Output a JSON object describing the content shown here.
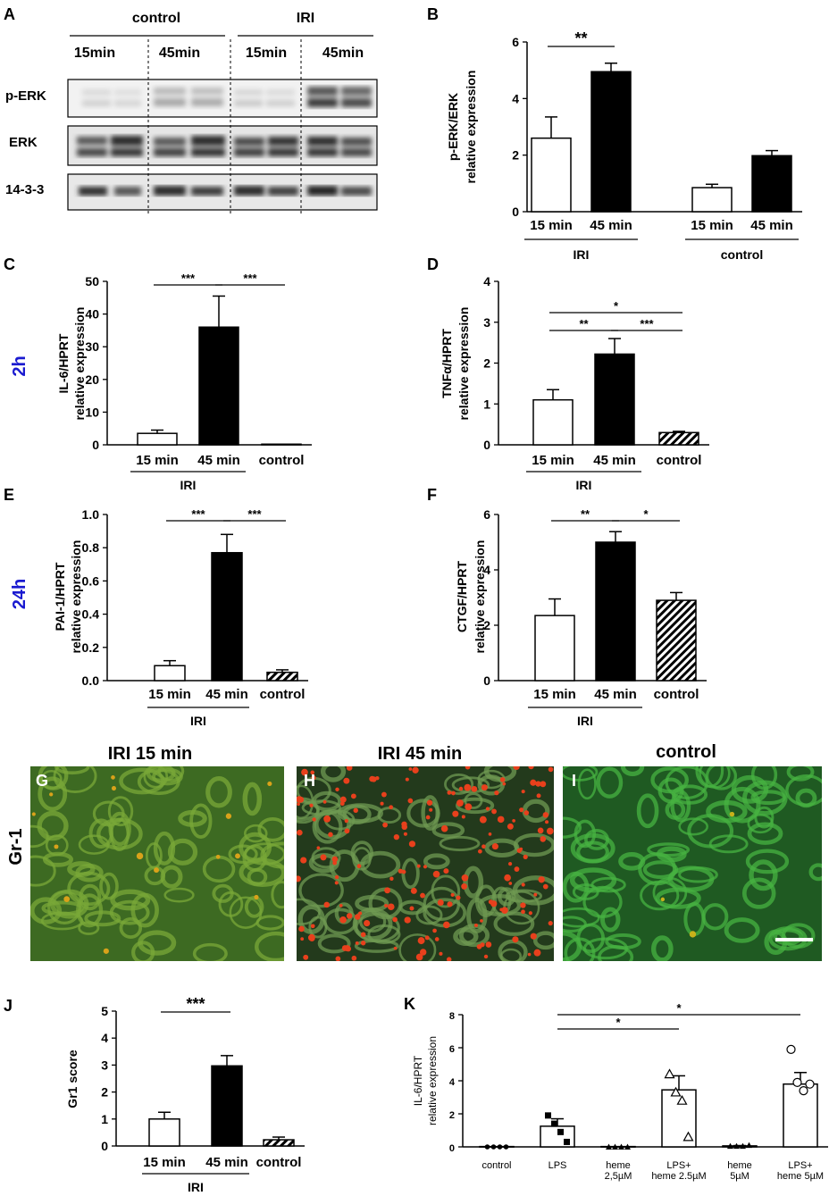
{
  "panel_labels": {
    "A": "A",
    "B": "B",
    "C": "C",
    "D": "D",
    "E": "E",
    "F": "F",
    "G": "G",
    "H": "H",
    "I": "I",
    "J": "J",
    "K": "K"
  },
  "side_labels": {
    "h2": "2h",
    "h24": "24h",
    "gr1": "Gr-1"
  },
  "colors": {
    "side_label": "#1a1ad0",
    "hatch": "#000000",
    "tissue_green": "#3a8a2a",
    "tissue_red": "#e03a1a"
  },
  "blot": {
    "group_labels": [
      "control",
      "IRI"
    ],
    "time_labels": [
      "15min",
      "45min",
      "15min",
      "45min"
    ],
    "rows": [
      "p-ERK",
      "ERK",
      "14-3-3"
    ]
  },
  "micrographs": {
    "titles": [
      "IRI 15 min",
      "IRI 45 min",
      "control"
    ]
  },
  "chart_data": [
    {
      "id": "B",
      "type": "bar",
      "categories": [
        "15 min",
        "45 min",
        "15 min",
        "45 min"
      ],
      "groups": [
        "IRI",
        "control"
      ],
      "values": [
        2.6,
        4.95,
        0.85,
        1.98
      ],
      "errors": [
        0.75,
        0.3,
        0.12,
        0.18
      ],
      "fills": [
        "white",
        "black",
        "white",
        "black"
      ],
      "ylabel": [
        "p-ERK/ERK",
        "relative expression"
      ],
      "ylim": [
        0,
        6
      ],
      "yticks": [
        "0",
        "2",
        "4",
        "6"
      ],
      "sig": [
        {
          "label": "**",
          "from": 0,
          "to": 1
        }
      ]
    },
    {
      "id": "C",
      "type": "bar",
      "categories": [
        "15 min",
        "45 min",
        "control"
      ],
      "groups": [
        "IRI"
      ],
      "values": [
        3.5,
        36,
        0.2
      ],
      "errors": [
        1,
        9.5,
        0
      ],
      "fills": [
        "white",
        "black",
        "white"
      ],
      "ylabel": [
        "IL-6/HPRT",
        "relative expression"
      ],
      "ylim": [
        0,
        50
      ],
      "yticks": [
        "0",
        "10",
        "20",
        "30",
        "40",
        "50"
      ],
      "sig": [
        {
          "label": "***",
          "from": 0,
          "to": 1
        },
        {
          "label": "***",
          "from": 1,
          "to": 2
        }
      ]
    },
    {
      "id": "D",
      "type": "bar",
      "categories": [
        "15 min",
        "45 min",
        "control"
      ],
      "groups": [
        "IRI"
      ],
      "values": [
        1.1,
        2.22,
        0.3
      ],
      "errors": [
        0.25,
        0.38,
        0.03
      ],
      "fills": [
        "white",
        "black",
        "hatch"
      ],
      "ylabel": [
        "TNFα/HPRT",
        "relative expression"
      ],
      "ylim": [
        0,
        4
      ],
      "yticks": [
        "0",
        "1",
        "2",
        "3",
        "4"
      ],
      "sig": [
        {
          "label": "*",
          "from": 0,
          "to": 2
        },
        {
          "label": "**",
          "from": 0,
          "to": 1
        },
        {
          "label": "***",
          "from": 1,
          "to": 2
        }
      ]
    },
    {
      "id": "E",
      "type": "bar",
      "categories": [
        "15 min",
        "45 min",
        "control"
      ],
      "groups": [
        "IRI"
      ],
      "values": [
        0.09,
        0.77,
        0.05
      ],
      "errors": [
        0.03,
        0.11,
        0.015
      ],
      "fills": [
        "white",
        "black",
        "hatch"
      ],
      "ylabel": [
        "PAI-1/HPRT",
        "relative expression"
      ],
      "ylim": [
        0,
        1.0
      ],
      "yticks": [
        "0.0",
        "0.2",
        "0.4",
        "0.6",
        "0.8",
        "1.0"
      ],
      "sig": [
        {
          "label": "***",
          "from": 0,
          "to": 1
        },
        {
          "label": "***",
          "from": 1,
          "to": 2
        }
      ]
    },
    {
      "id": "F",
      "type": "bar",
      "categories": [
        "15 min",
        "45 min",
        "control"
      ],
      "groups": [
        "IRI"
      ],
      "values": [
        2.35,
        5.0,
        2.9
      ],
      "errors": [
        0.6,
        0.38,
        0.28
      ],
      "fills": [
        "white",
        "black",
        "hatch"
      ],
      "ylabel": [
        "CTGF/HPRT",
        "relative expression"
      ],
      "ylim": [
        0,
        6
      ],
      "yticks": [
        "0",
        "2",
        "4",
        "6"
      ],
      "sig": [
        {
          "label": "**",
          "from": 0,
          "to": 1
        },
        {
          "label": "*",
          "from": 1,
          "to": 2
        }
      ]
    },
    {
      "id": "J",
      "type": "bar",
      "categories": [
        "15 min",
        "45 min",
        "control"
      ],
      "groups": [
        "IRI"
      ],
      "values": [
        1.0,
        2.97,
        0.23
      ],
      "errors": [
        0.25,
        0.38,
        0.1
      ],
      "fills": [
        "white",
        "black",
        "hatch"
      ],
      "ylabel": [
        "Gr1 score"
      ],
      "ylim": [
        0,
        5
      ],
      "yticks": [
        "0",
        "1",
        "2",
        "3",
        "4",
        "5"
      ],
      "sig": [
        {
          "label": "***",
          "from": 0,
          "to": 1
        }
      ]
    },
    {
      "id": "K",
      "type": "bar",
      "categories": [
        "control",
        "LPS",
        "heme 2,5µM",
        "LPS+ heme 2.5µM",
        "heme 5µM",
        "LPS+ heme 5µM"
      ],
      "values": [
        0.02,
        1.25,
        0.02,
        3.45,
        0.06,
        3.8
      ],
      "errors": [
        0,
        0.45,
        0,
        0.85,
        0.02,
        0.7
      ],
      "points": [
        [
          0,
          0,
          0,
          0
        ],
        [
          1.9,
          1.4,
          0.9,
          0.3
        ],
        [
          0,
          0,
          0,
          0
        ],
        [
          4.4,
          3.3,
          2.8,
          0.6
        ],
        [
          0.05,
          0.05,
          0.05,
          0.1
        ],
        [
          5.9,
          3.9,
          3.4,
          3.8
        ]
      ],
      "markers": [
        "dot",
        "square",
        "triangle-filled",
        "triangle-open",
        "triangle-filled",
        "circle-open"
      ],
      "ylabel": [
        "IL-6/HPRT",
        "relative expression"
      ],
      "ylim": [
        0,
        8
      ],
      "yticks": [
        "0",
        "2",
        "4",
        "6",
        "8"
      ],
      "sig": [
        {
          "label": "*",
          "from": 1,
          "to": 3
        },
        {
          "label": "*",
          "from": 1,
          "to": 5
        }
      ]
    }
  ]
}
